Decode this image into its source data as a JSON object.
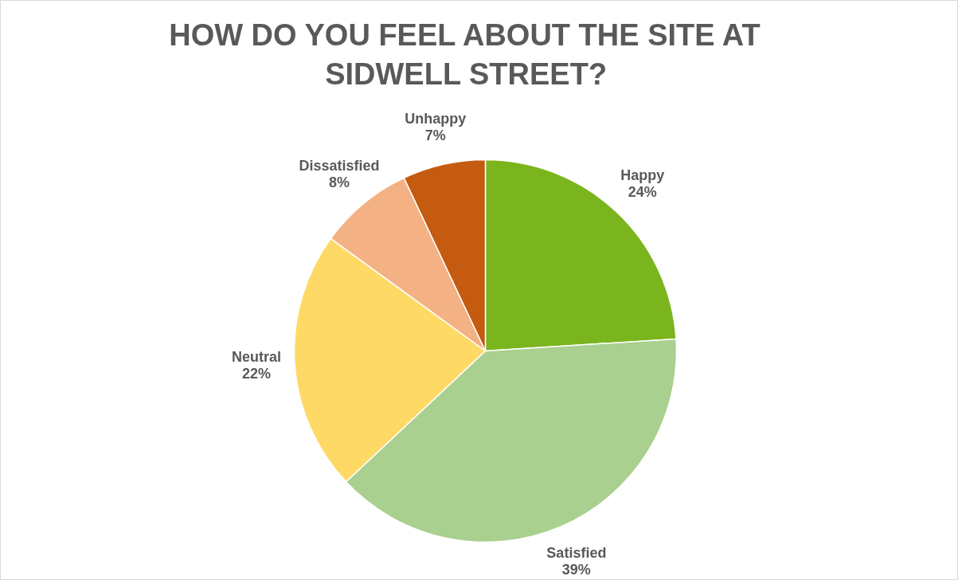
{
  "chart_data": {
    "type": "pie",
    "title": "HOW DO YOU FEEL ABOUT THE SITE AT\nSIDWELL STREET?",
    "categories": [
      "Happy",
      "Satisfied",
      "Neutral",
      "Dissatisfied",
      "Unhappy"
    ],
    "values": [
      24,
      39,
      22,
      8,
      7
    ],
    "colors": [
      "#7ab51d",
      "#a9d08e",
      "#ffd966",
      "#f4b183",
      "#c55a11"
    ],
    "value_labels": [
      "24%",
      "39%",
      "22%",
      "8%",
      "7%"
    ]
  }
}
